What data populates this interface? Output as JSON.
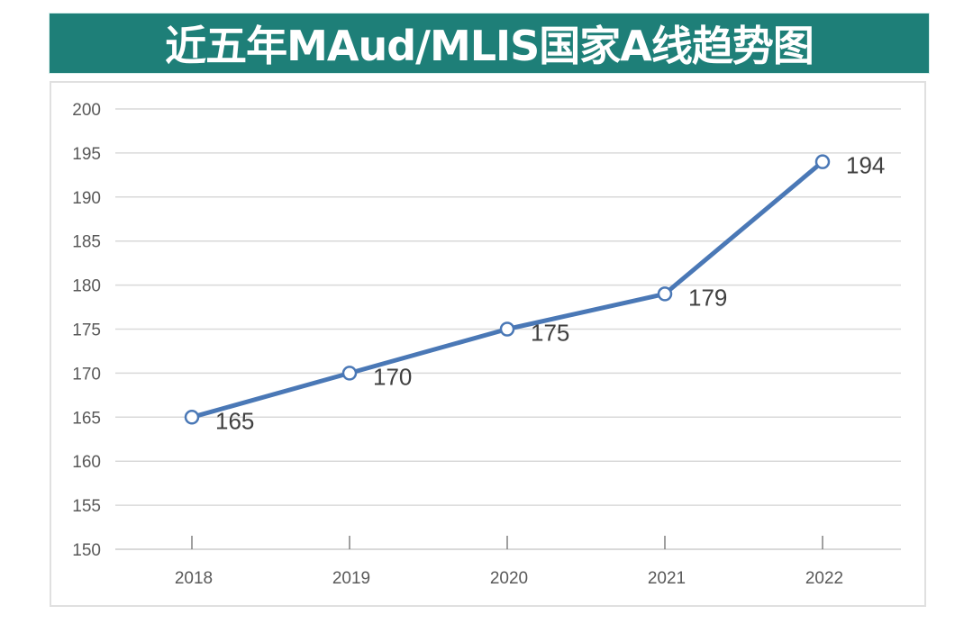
{
  "title": "近五年MAud/MLIS国家A线趋势图",
  "colors": {
    "title_bg": "#1e7f78",
    "title_text": "#ffffff",
    "line": "#4a78b6",
    "marker_fill": "#ffffff",
    "grid": "#d9d9d9",
    "tick_text": "#595959",
    "data_label_text": "#404040"
  },
  "chart_data": {
    "type": "line",
    "title": "近五年MAud/MLIS国家A线趋势图",
    "xlabel": "",
    "ylabel": "",
    "categories": [
      "2018",
      "2019",
      "2020",
      "2021",
      "2022"
    ],
    "series": [
      {
        "name": "国家A线",
        "values": [
          165,
          170,
          175,
          179,
          194
        ]
      }
    ],
    "data_labels": [
      "165",
      "170",
      "175",
      "179",
      "194"
    ],
    "ylim": [
      150,
      200
    ],
    "yticks": [
      150,
      155,
      160,
      165,
      170,
      175,
      180,
      185,
      190,
      195,
      200
    ],
    "ytick_labels": [
      "150",
      "155",
      "160",
      "165",
      "170",
      "175",
      "180",
      "185",
      "190",
      "195",
      "200"
    ],
    "grid": true,
    "legend": "none",
    "markers": "hollow-circle"
  }
}
